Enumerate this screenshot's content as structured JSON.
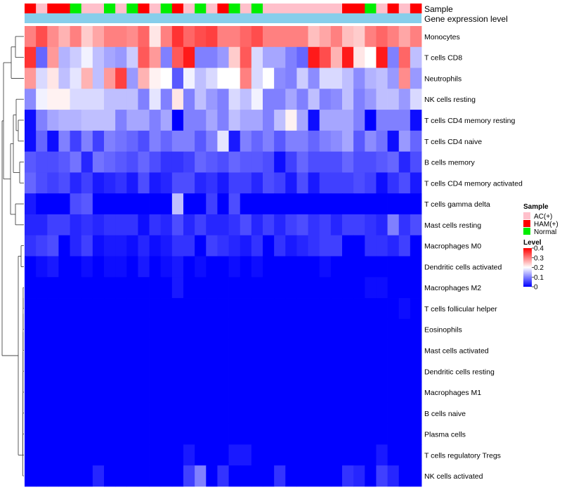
{
  "chart_data": {
    "type": "heatmap",
    "title": "",
    "annotation_tracks": [
      "Sample",
      "Gene expression level"
    ],
    "rows": [
      "Monocytes",
      "T cells CD8",
      "Neutrophils",
      "NK cells resting",
      "T cells CD4 memory resting",
      "T cells CD4 naive",
      "B cells memory",
      "T cells CD4 memory activated",
      "T cells gamma delta",
      "Mast cells resting",
      "Macrophages M0",
      "Dendritic cells activated",
      "Macrophages M2",
      "T cells follicular helper",
      "Eosinophils",
      "Mast cells activated",
      "Dendritic cells resting",
      "Macrophages M1",
      "B cells naive",
      "Plasma cells",
      "T cells regulatory  Tregs",
      "NK cells activated"
    ],
    "sample_groups": [
      "HAM(+)",
      "AC(+)",
      "HAM(+)",
      "HAM(+)",
      "Normal",
      "AC(+)",
      "AC(+)",
      "Normal",
      "AC(+)",
      "Normal",
      "HAM(+)",
      "AC(+)",
      "Normal",
      "HAM(+)",
      "AC(+)",
      "Normal",
      "AC(+)",
      "HAM(+)",
      "Normal",
      "AC(+)",
      "Normal",
      "AC(+)",
      "AC(+)",
      "AC(+)",
      "AC(+)",
      "AC(+)",
      "AC(+)",
      "AC(+)",
      "HAM(+)",
      "HAM(+)",
      "Normal",
      "AC(+)",
      "HAM(+)",
      "AC(+)",
      "HAM(+)"
    ],
    "values": [
      [
        0.3,
        0.34,
        0.29,
        0.26,
        0.3,
        0.24,
        0.27,
        0.3,
        0.3,
        0.29,
        0.32,
        0.22,
        0.3,
        0.36,
        0.32,
        0.34,
        0.35,
        0.3,
        0.3,
        0.32,
        0.34,
        0.3,
        0.3,
        0.3,
        0.3,
        0.25,
        0.27,
        0.3,
        0.25,
        0.24,
        0.3,
        0.32,
        0.3,
        0.27,
        0.3
      ],
      [
        0.36,
        0.08,
        0.28,
        0.14,
        0.16,
        0.19,
        0.15,
        0.13,
        0.12,
        0.16,
        0.33,
        0.28,
        0.1,
        0.33,
        0.38,
        0.1,
        0.1,
        0.12,
        0.24,
        0.33,
        0.17,
        0.13,
        0.13,
        0.1,
        0.08,
        0.38,
        0.34,
        0.26,
        0.38,
        0.22,
        0.2,
        0.38,
        0.1,
        0.32,
        0.15
      ],
      [
        0.28,
        0.17,
        0.22,
        0.15,
        0.18,
        0.26,
        0.15,
        0.28,
        0.35,
        0.12,
        0.26,
        0.21,
        0.2,
        0.07,
        0.19,
        0.15,
        0.17,
        0.2,
        0.2,
        0.3,
        0.17,
        0.2,
        0.11,
        0.1,
        0.16,
        0.11,
        0.17,
        0.17,
        0.15,
        0.11,
        0.14,
        0.15,
        0.12,
        0.29,
        0.12
      ],
      [
        0.11,
        0.19,
        0.21,
        0.21,
        0.17,
        0.17,
        0.17,
        0.15,
        0.15,
        0.15,
        0.1,
        0.18,
        0.1,
        0.22,
        0.1,
        0.15,
        0.12,
        0.1,
        0.17,
        0.15,
        0.19,
        0.1,
        0.1,
        0.13,
        0.1,
        0.15,
        0.1,
        0.11,
        0.15,
        0.1,
        0.12,
        0.15,
        0.15,
        0.12,
        0.17
      ],
      [
        0.01,
        0.1,
        0.13,
        0.14,
        0.14,
        0.15,
        0.15,
        0.15,
        0.1,
        0.13,
        0.13,
        0.1,
        0.13,
        0.0,
        0.1,
        0.1,
        0.13,
        0.1,
        0.15,
        0.13,
        0.13,
        0.1,
        0.15,
        0.21,
        0.13,
        0.01,
        0.13,
        0.13,
        0.13,
        0.1,
        0.0,
        0.1,
        0.1,
        0.1,
        0.01
      ],
      [
        0.01,
        0.08,
        0.01,
        0.1,
        0.05,
        0.1,
        0.05,
        0.1,
        0.09,
        0.08,
        0.06,
        0.1,
        0.08,
        0.1,
        0.1,
        0.07,
        0.1,
        0.18,
        0.02,
        0.1,
        0.08,
        0.1,
        0.07,
        0.1,
        0.1,
        0.08,
        0.1,
        0.11,
        0.13,
        0.07,
        0.11,
        0.09,
        0.01,
        0.12,
        0.08
      ],
      [
        0.07,
        0.06,
        0.06,
        0.07,
        0.09,
        0.03,
        0.09,
        0.08,
        0.07,
        0.06,
        0.08,
        0.06,
        0.04,
        0.04,
        0.05,
        0.08,
        0.07,
        0.06,
        0.08,
        0.07,
        0.07,
        0.06,
        0.01,
        0.05,
        0.08,
        0.06,
        0.06,
        0.06,
        0.08,
        0.06,
        0.06,
        0.07,
        0.08,
        0.03,
        0.06
      ],
      [
        0.08,
        0.06,
        0.05,
        0.06,
        0.03,
        0.05,
        0.02,
        0.03,
        0.04,
        0.02,
        0.06,
        0.02,
        0.03,
        0.06,
        0.06,
        0.03,
        0.04,
        0.02,
        0.05,
        0.05,
        0.03,
        0.06,
        0.05,
        0.02,
        0.06,
        0.02,
        0.05,
        0.05,
        0.05,
        0.06,
        0.05,
        0.01,
        0.04,
        0.06,
        0.02
      ],
      [
        0.02,
        0.0,
        0.0,
        0.0,
        0.06,
        0.07,
        0.0,
        0.0,
        0.0,
        0.0,
        0.0,
        0.0,
        0.0,
        0.15,
        0.0,
        0.0,
        0.05,
        0.0,
        0.06,
        0.0,
        0.0,
        0.0,
        0.0,
        0.0,
        0.0,
        0.0,
        0.0,
        0.0,
        0.0,
        0.0,
        0.0,
        0.0,
        0.0,
        0.0,
        0.0
      ],
      [
        0.03,
        0.03,
        0.05,
        0.05,
        0.03,
        0.04,
        0.03,
        0.04,
        0.04,
        0.04,
        0.01,
        0.04,
        0.03,
        0.06,
        0.03,
        0.05,
        0.03,
        0.03,
        0.04,
        0.06,
        0.03,
        0.05,
        0.03,
        0.05,
        0.06,
        0.04,
        0.05,
        0.03,
        0.05,
        0.05,
        0.04,
        0.03,
        0.1,
        0.04,
        0.06
      ],
      [
        0.04,
        0.05,
        0.06,
        0.0,
        0.03,
        0.05,
        0.01,
        0.02,
        0.02,
        0.01,
        0.03,
        0.01,
        0.02,
        0.04,
        0.04,
        0.0,
        0.05,
        0.04,
        0.03,
        0.02,
        0.04,
        0.0,
        0.04,
        0.02,
        0.03,
        0.04,
        0.05,
        0.05,
        0.0,
        0.0,
        0.04,
        0.04,
        0.03,
        0.05,
        0.0
      ],
      [
        0.0,
        0.01,
        0.02,
        0.0,
        0.0,
        0.01,
        0.0,
        0.01,
        0.01,
        0.0,
        0.02,
        0.0,
        0.01,
        0.02,
        0.0,
        0.01,
        0.0,
        0.0,
        0.01,
        0.0,
        0.01,
        0.0,
        0.0,
        0.0,
        0.0,
        0.0,
        0.01,
        0.0,
        0.0,
        0.0,
        0.0,
        0.0,
        0.0,
        0.0,
        0.0
      ],
      [
        0.0,
        0.0,
        0.0,
        0.0,
        0.0,
        0.0,
        0.0,
        0.0,
        0.0,
        0.0,
        0.0,
        0.0,
        0.0,
        0.02,
        0.0,
        0.0,
        0.0,
        0.0,
        0.0,
        0.0,
        0.0,
        0.0,
        0.0,
        0.0,
        0.0,
        0.0,
        0.0,
        0.0,
        0.0,
        0.0,
        0.01,
        0.01,
        0.0,
        0.0,
        0.0
      ],
      [
        0.0,
        0.0,
        0.0,
        0.0,
        0.0,
        0.0,
        0.0,
        0.0,
        0.0,
        0.0,
        0.0,
        0.0,
        0.0,
        0.0,
        0.0,
        0.0,
        0.0,
        0.0,
        0.0,
        0.0,
        0.0,
        0.0,
        0.0,
        0.0,
        0.0,
        0.0,
        0.0,
        0.0,
        0.0,
        0.0,
        0.0,
        0.0,
        0.0,
        0.01,
        0.0
      ],
      [
        0.0,
        0.0,
        0.0,
        0.0,
        0.0,
        0.0,
        0.0,
        0.0,
        0.0,
        0.0,
        0.0,
        0.0,
        0.0,
        0.0,
        0.0,
        0.0,
        0.0,
        0.0,
        0.0,
        0.0,
        0.0,
        0.0,
        0.0,
        0.0,
        0.0,
        0.0,
        0.0,
        0.0,
        0.0,
        0.0,
        0.0,
        0.0,
        0.0,
        0.0,
        0.0
      ],
      [
        0.0,
        0.0,
        0.0,
        0.0,
        0.0,
        0.0,
        0.0,
        0.0,
        0.0,
        0.0,
        0.0,
        0.0,
        0.0,
        0.0,
        0.0,
        0.0,
        0.0,
        0.0,
        0.0,
        0.0,
        0.0,
        0.0,
        0.0,
        0.0,
        0.0,
        0.0,
        0.0,
        0.0,
        0.0,
        0.0,
        0.0,
        0.0,
        0.0,
        0.0,
        0.0
      ],
      [
        0.0,
        0.0,
        0.0,
        0.0,
        0.0,
        0.0,
        0.0,
        0.0,
        0.0,
        0.0,
        0.0,
        0.0,
        0.0,
        0.0,
        0.0,
        0.0,
        0.0,
        0.0,
        0.0,
        0.0,
        0.0,
        0.0,
        0.0,
        0.0,
        0.0,
        0.0,
        0.0,
        0.0,
        0.0,
        0.0,
        0.0,
        0.0,
        0.0,
        0.0,
        0.0
      ],
      [
        0.0,
        0.0,
        0.0,
        0.0,
        0.0,
        0.0,
        0.0,
        0.0,
        0.0,
        0.0,
        0.0,
        0.0,
        0.0,
        0.0,
        0.0,
        0.0,
        0.0,
        0.0,
        0.0,
        0.0,
        0.0,
        0.0,
        0.0,
        0.0,
        0.0,
        0.0,
        0.0,
        0.0,
        0.0,
        0.0,
        0.0,
        0.0,
        0.0,
        0.0,
        0.0
      ],
      [
        0.0,
        0.0,
        0.0,
        0.0,
        0.0,
        0.0,
        0.0,
        0.0,
        0.0,
        0.0,
        0.0,
        0.0,
        0.0,
        0.0,
        0.0,
        0.0,
        0.0,
        0.0,
        0.0,
        0.0,
        0.0,
        0.0,
        0.0,
        0.0,
        0.0,
        0.0,
        0.0,
        0.0,
        0.0,
        0.0,
        0.0,
        0.0,
        0.0,
        0.0,
        0.0
      ],
      [
        0.0,
        0.0,
        0.0,
        0.0,
        0.0,
        0.0,
        0.0,
        0.0,
        0.0,
        0.0,
        0.0,
        0.0,
        0.0,
        0.0,
        0.0,
        0.0,
        0.0,
        0.0,
        0.0,
        0.0,
        0.0,
        0.0,
        0.0,
        0.0,
        0.0,
        0.0,
        0.0,
        0.0,
        0.0,
        0.0,
        0.0,
        0.0,
        0.0,
        0.0,
        0.0
      ],
      [
        0.0,
        0.0,
        0.0,
        0.0,
        0.0,
        0.0,
        0.0,
        0.0,
        0.0,
        0.0,
        0.0,
        0.0,
        0.0,
        0.0,
        0.02,
        0.0,
        0.0,
        0.0,
        0.02,
        0.02,
        0.0,
        0.0,
        0.0,
        0.0,
        0.0,
        0.0,
        0.0,
        0.0,
        0.0,
        0.0,
        0.0,
        0.02,
        0.0,
        0.0,
        0.0
      ],
      [
        0.0,
        0.0,
        0.0,
        0.0,
        0.0,
        0.0,
        0.03,
        0.0,
        0.0,
        0.0,
        0.0,
        0.0,
        0.0,
        0.0,
        0.05,
        0.1,
        0.0,
        0.04,
        0.0,
        0.0,
        0.0,
        0.0,
        0.04,
        0.0,
        0.0,
        0.0,
        0.0,
        0.0,
        0.04,
        0.03,
        0.0,
        0.05,
        0.03,
        0.0,
        0.0
      ]
    ],
    "legend": {
      "sample_title": "Sample",
      "sample_entries": [
        {
          "label": "AC(+)",
          "color": "#ffc0cb"
        },
        {
          "label": "HAM(+)",
          "color": "#ff0000"
        },
        {
          "label": "Normal",
          "color": "#00ee00"
        }
      ],
      "level_title": "Level",
      "level_ticks": [
        "0.4",
        "0.3",
        "0.2",
        "0.1",
        "0"
      ],
      "level_range": [
        0,
        0.4
      ]
    },
    "colors": {
      "low": "#0000ff",
      "mid": "#ffffff",
      "high": "#ff0000",
      "gene_expression_track": "#87ceeb"
    }
  }
}
